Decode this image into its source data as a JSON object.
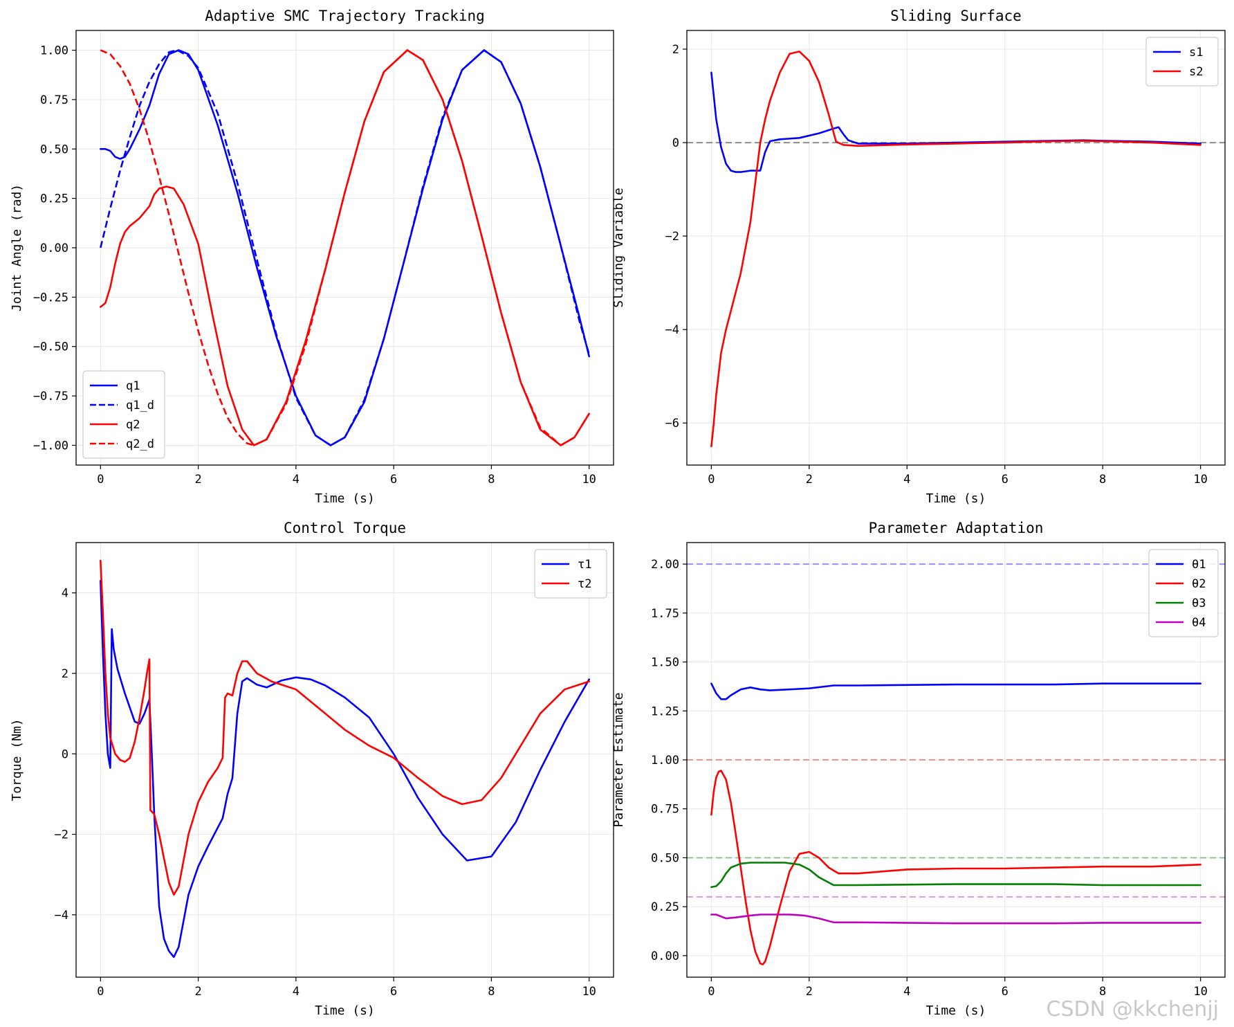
{
  "watermark": "CSDN @kkchenjj",
  "chart_data": [
    {
      "type": "line",
      "title": "Adaptive SMC Trajectory Tracking",
      "xlabel": "Time (s)",
      "ylabel": "Joint Angle (rad)",
      "xlim": [
        -0.5,
        10.5
      ],
      "ylim": [
        -1.1,
        1.1
      ],
      "xticks": [
        0,
        2,
        4,
        6,
        8,
        10
      ],
      "xtick_labels": [
        "0",
        "2",
        "4",
        "6",
        "8",
        "10"
      ],
      "yticks": [
        1.0,
        0.75,
        0.5,
        0.25,
        0.0,
        -0.25,
        -0.5,
        -0.75,
        -1.0
      ],
      "ytick_labels": [
        "1.00",
        "0.75",
        "0.50",
        "0.25",
        "0.00",
        "−0.25",
        "−0.50",
        "−0.75",
        "−1.00"
      ],
      "grid": true,
      "legend_position": "lower-left",
      "series": [
        {
          "name": "q1",
          "color": "#0000ff",
          "style": "solid",
          "x": [
            0,
            0.1,
            0.2,
            0.3,
            0.4,
            0.5,
            0.6,
            0.8,
            1.0,
            1.2,
            1.4,
            1.6,
            1.8,
            2.0,
            2.4,
            2.8,
            3.2,
            3.6,
            4.0,
            4.4,
            4.71,
            5.0,
            5.4,
            5.8,
            6.2,
            6.6,
            7.0,
            7.4,
            7.85,
            8.2,
            8.6,
            9.0,
            9.4,
            9.8,
            10.0
          ],
          "y": [
            0.5,
            0.5,
            0.49,
            0.46,
            0.45,
            0.46,
            0.5,
            0.6,
            0.72,
            0.88,
            0.98,
            1.0,
            0.98,
            0.9,
            0.62,
            0.28,
            -0.1,
            -0.45,
            -0.75,
            -0.95,
            -1.0,
            -0.96,
            -0.78,
            -0.46,
            -0.08,
            0.3,
            0.65,
            0.9,
            1.0,
            0.94,
            0.73,
            0.41,
            0.03,
            -0.35,
            -0.55
          ]
        },
        {
          "name": "q1_d",
          "color": "#0000ff",
          "style": "dashed",
          "x": [
            0,
            0.2,
            0.4,
            0.6,
            0.8,
            1.0,
            1.2,
            1.4,
            1.57,
            1.8,
            2.0,
            2.4,
            2.8,
            3.2,
            3.6,
            4.0,
            4.4,
            4.71,
            5.0,
            5.4,
            5.8,
            6.2,
            6.6,
            7.0,
            7.4,
            7.85,
            8.2,
            8.6,
            9.0,
            9.4,
            9.8,
            10.0
          ],
          "y": [
            0.0,
            0.2,
            0.39,
            0.56,
            0.72,
            0.84,
            0.93,
            0.99,
            1.0,
            0.97,
            0.91,
            0.68,
            0.33,
            -0.06,
            -0.44,
            -0.76,
            -0.95,
            -1.0,
            -0.96,
            -0.77,
            -0.46,
            -0.08,
            0.31,
            0.66,
            0.9,
            1.0,
            0.94,
            0.73,
            0.41,
            0.03,
            -0.37,
            -0.54
          ]
        },
        {
          "name": "q2",
          "color": "#ff0000",
          "style": "solid",
          "x": [
            0,
            0.1,
            0.2,
            0.3,
            0.4,
            0.5,
            0.6,
            0.8,
            1.0,
            1.1,
            1.2,
            1.35,
            1.5,
            1.7,
            2.0,
            2.3,
            2.6,
            2.9,
            3.14,
            3.4,
            3.8,
            4.2,
            4.6,
            5.0,
            5.4,
            5.8,
            6.28,
            6.6,
            7.0,
            7.4,
            7.8,
            8.2,
            8.6,
            9.0,
            9.42,
            9.7,
            10.0
          ],
          "y": [
            -0.3,
            -0.28,
            -0.2,
            -0.08,
            0.02,
            0.08,
            0.11,
            0.15,
            0.21,
            0.27,
            0.3,
            0.31,
            0.3,
            0.22,
            0.02,
            -0.35,
            -0.7,
            -0.92,
            -1.0,
            -0.97,
            -0.78,
            -0.47,
            -0.11,
            0.28,
            0.64,
            0.89,
            1.0,
            0.95,
            0.75,
            0.44,
            0.06,
            -0.33,
            -0.68,
            -0.92,
            -1.0,
            -0.96,
            -0.84
          ]
        },
        {
          "name": "q2_d",
          "color": "#ff0000",
          "style": "dashed",
          "x": [
            0,
            0.2,
            0.4,
            0.6,
            0.8,
            1.0,
            1.2,
            1.4,
            1.6,
            1.8,
            2.0,
            2.2,
            2.4,
            2.6,
            2.8,
            3.0,
            3.14,
            3.4,
            3.8,
            4.2,
            4.6,
            5.0,
            5.4,
            5.8,
            6.28,
            6.6,
            7.0,
            7.4,
            7.8,
            8.2,
            8.6,
            9.0,
            9.42,
            9.7,
            10.0
          ],
          "y": [
            1.0,
            0.98,
            0.92,
            0.83,
            0.7,
            0.54,
            0.36,
            0.17,
            -0.03,
            -0.23,
            -0.42,
            -0.59,
            -0.74,
            -0.86,
            -0.94,
            -0.99,
            -1.0,
            -0.97,
            -0.79,
            -0.49,
            -0.11,
            0.28,
            0.64,
            0.89,
            1.0,
            0.95,
            0.75,
            0.44,
            0.06,
            -0.33,
            -0.68,
            -0.91,
            -1.0,
            -0.96,
            -0.84
          ]
        }
      ]
    },
    {
      "type": "line",
      "title": "Sliding Surface",
      "xlabel": "Time (s)",
      "ylabel": "Sliding Variable",
      "xlim": [
        -0.5,
        10.5
      ],
      "ylim": [
        -6.9,
        2.4
      ],
      "xticks": [
        0,
        2,
        4,
        6,
        8,
        10
      ],
      "xtick_labels": [
        "0",
        "2",
        "4",
        "6",
        "8",
        "10"
      ],
      "yticks": [
        2,
        0,
        -2,
        -4,
        -6
      ],
      "ytick_labels": [
        "2",
        "0",
        "−2",
        "−4",
        "−6"
      ],
      "grid": true,
      "legend_position": "upper-right",
      "hlines": [
        {
          "y": 0,
          "color": "#808080",
          "style": "dashed"
        }
      ],
      "series": [
        {
          "name": "s1",
          "color": "#0000ff",
          "style": "solid",
          "x": [
            0,
            0.1,
            0.2,
            0.3,
            0.4,
            0.5,
            0.6,
            0.8,
            1.0,
            1.1,
            1.2,
            1.4,
            1.8,
            2.2,
            2.5,
            2.6,
            2.7,
            2.8,
            3.0,
            4.0,
            5.0,
            6.0,
            7.0,
            7.6,
            8.0,
            9.0,
            10.0
          ],
          "y": [
            1.5,
            0.5,
            -0.1,
            -0.45,
            -0.6,
            -0.63,
            -0.63,
            -0.6,
            -0.6,
            -0.2,
            0.03,
            0.07,
            0.1,
            0.2,
            0.3,
            0.33,
            0.18,
            0.05,
            -0.02,
            -0.02,
            0.0,
            0.02,
            0.04,
            0.05,
            0.04,
            0.02,
            -0.02
          ]
        },
        {
          "name": "s2",
          "color": "#ff0000",
          "style": "solid",
          "x": [
            0,
            0.05,
            0.1,
            0.2,
            0.3,
            0.4,
            0.5,
            0.6,
            0.8,
            1.0,
            1.1,
            1.2,
            1.4,
            1.6,
            1.8,
            2.0,
            2.2,
            2.4,
            2.55,
            2.7,
            3.0,
            4.0,
            5.0,
            6.0,
            7.0,
            7.6,
            8.0,
            9.0,
            10.0
          ],
          "y": [
            -6.5,
            -6.0,
            -5.4,
            -4.5,
            -4.0,
            -3.6,
            -3.2,
            -2.8,
            -1.7,
            0.0,
            0.5,
            0.9,
            1.5,
            1.9,
            1.95,
            1.75,
            1.3,
            0.6,
            0.02,
            -0.05,
            -0.07,
            -0.04,
            -0.02,
            0.0,
            0.03,
            0.04,
            0.03,
            0.0,
            -0.05
          ]
        }
      ]
    },
    {
      "type": "line",
      "title": "Control Torque",
      "xlabel": "Time (s)",
      "ylabel": "Torque (Nm)",
      "xlim": [
        -0.5,
        10.5
      ],
      "ylim": [
        -5.55,
        5.25
      ],
      "xticks": [
        0,
        2,
        4,
        6,
        8,
        10
      ],
      "xtick_labels": [
        "0",
        "2",
        "4",
        "6",
        "8",
        "10"
      ],
      "yticks": [
        4,
        2,
        0,
        -2,
        -4
      ],
      "ytick_labels": [
        "4",
        "2",
        "0",
        "−2",
        "−4"
      ],
      "grid": true,
      "legend_position": "upper-right",
      "series": [
        {
          "name": "τ1",
          "color": "#0000ff",
          "style": "solid",
          "x": [
            0,
            0.05,
            0.1,
            0.15,
            0.2,
            0.23,
            0.27,
            0.35,
            0.5,
            0.7,
            0.8,
            0.9,
            1.0,
            1.05,
            1.1,
            1.2,
            1.3,
            1.4,
            1.5,
            1.6,
            1.8,
            2.0,
            2.2,
            2.5,
            2.6,
            2.7,
            2.8,
            2.9,
            3.0,
            3.2,
            3.4,
            3.7,
            4.0,
            4.3,
            4.6,
            5.0,
            5.5,
            6.0,
            6.5,
            7.0,
            7.5,
            8.0,
            8.5,
            9.0,
            9.5,
            10.0
          ],
          "y": [
            4.3,
            2.5,
            1.0,
            0.0,
            -0.35,
            3.1,
            2.6,
            2.1,
            1.5,
            0.8,
            0.75,
            1.0,
            1.35,
            0.0,
            -1.5,
            -3.8,
            -4.6,
            -4.9,
            -5.05,
            -4.8,
            -3.5,
            -2.8,
            -2.3,
            -1.6,
            -1.0,
            -0.6,
            1.0,
            1.8,
            1.88,
            1.72,
            1.65,
            1.82,
            1.9,
            1.85,
            1.7,
            1.4,
            0.9,
            0.0,
            -1.1,
            -2.0,
            -2.65,
            -2.55,
            -1.7,
            -0.4,
            0.8,
            1.85
          ]
        },
        {
          "name": "τ2",
          "color": "#ff0000",
          "style": "solid",
          "x": [
            0,
            0.05,
            0.1,
            0.15,
            0.2,
            0.3,
            0.4,
            0.5,
            0.6,
            0.7,
            0.8,
            0.9,
            0.95,
            1.0,
            1.02,
            1.1,
            1.2,
            1.3,
            1.4,
            1.5,
            1.6,
            1.8,
            2.0,
            2.2,
            2.4,
            2.5,
            2.55,
            2.6,
            2.7,
            2.8,
            2.9,
            3.0,
            3.2,
            3.5,
            4.0,
            4.5,
            5.0,
            5.5,
            6.0,
            6.5,
            7.0,
            7.4,
            7.8,
            8.2,
            8.6,
            9.0,
            9.5,
            10.0
          ],
          "y": [
            4.8,
            3.5,
            2.0,
            1.0,
            0.4,
            -0.0,
            -0.15,
            -0.2,
            -0.1,
            0.3,
            0.9,
            1.6,
            2.0,
            2.35,
            -1.4,
            -1.5,
            -2.0,
            -2.6,
            -3.2,
            -3.5,
            -3.3,
            -2.0,
            -1.2,
            -0.7,
            -0.35,
            -0.1,
            1.4,
            1.5,
            1.45,
            2.0,
            2.3,
            2.3,
            2.0,
            1.8,
            1.6,
            1.1,
            0.6,
            0.2,
            -0.1,
            -0.6,
            -1.05,
            -1.25,
            -1.15,
            -0.6,
            0.2,
            1.0,
            1.6,
            1.8
          ]
        }
      ]
    },
    {
      "type": "line",
      "title": "Parameter Adaptation",
      "xlabel": "Time (s)",
      "ylabel": "Parameter Estimate",
      "xlim": [
        -0.5,
        10.5
      ],
      "ylim": [
        -0.11,
        2.11
      ],
      "xticks": [
        0,
        2,
        4,
        6,
        8,
        10
      ],
      "xtick_labels": [
        "0",
        "2",
        "4",
        "6",
        "8",
        "10"
      ],
      "yticks": [
        2.0,
        1.75,
        1.5,
        1.25,
        1.0,
        0.75,
        0.5,
        0.25,
        0.0
      ],
      "ytick_labels": [
        "2.00",
        "1.75",
        "1.50",
        "1.25",
        "1.00",
        "0.75",
        "0.50",
        "0.25",
        "0.00"
      ],
      "grid": true,
      "legend_position": "upper-right",
      "hlines": [
        {
          "y": 2.0,
          "color": "#0000ff"
        },
        {
          "y": 1.0,
          "color": "#ff0000"
        },
        {
          "y": 0.5,
          "color": "#008000"
        },
        {
          "y": 0.3,
          "color": "#bf00bf"
        }
      ],
      "series": [
        {
          "name": "θ1",
          "color": "#0000ff",
          "style": "solid",
          "x": [
            0,
            0.1,
            0.2,
            0.3,
            0.4,
            0.6,
            0.8,
            1.0,
            1.2,
            1.6,
            2.0,
            2.5,
            3.0,
            5.0,
            7.0,
            8.0,
            9.0,
            10.0
          ],
          "y": [
            1.39,
            1.34,
            1.31,
            1.31,
            1.33,
            1.36,
            1.37,
            1.36,
            1.355,
            1.36,
            1.365,
            1.38,
            1.38,
            1.385,
            1.385,
            1.39,
            1.39,
            1.39
          ]
        },
        {
          "name": "θ2",
          "color": "#ff0000",
          "style": "solid",
          "x": [
            0,
            0.05,
            0.1,
            0.15,
            0.2,
            0.3,
            0.4,
            0.5,
            0.6,
            0.7,
            0.8,
            0.9,
            1.0,
            1.05,
            1.1,
            1.2,
            1.4,
            1.6,
            1.8,
            2.0,
            2.2,
            2.4,
            2.6,
            3.0,
            4.0,
            5.0,
            6.0,
            7.0,
            8.0,
            9.0,
            10.0
          ],
          "y": [
            0.72,
            0.84,
            0.91,
            0.94,
            0.945,
            0.9,
            0.78,
            0.62,
            0.45,
            0.28,
            0.13,
            0.02,
            -0.04,
            -0.045,
            -0.03,
            0.05,
            0.25,
            0.43,
            0.52,
            0.53,
            0.5,
            0.45,
            0.42,
            0.42,
            0.44,
            0.445,
            0.445,
            0.45,
            0.455,
            0.455,
            0.465
          ]
        },
        {
          "name": "θ3",
          "color": "#008000",
          "style": "solid",
          "x": [
            0,
            0.1,
            0.2,
            0.3,
            0.4,
            0.6,
            0.8,
            1.0,
            1.2,
            1.5,
            1.8,
            2.0,
            2.2,
            2.5,
            3.0,
            5.0,
            7.0,
            8.0,
            9.0,
            10.0
          ],
          "y": [
            0.35,
            0.355,
            0.38,
            0.42,
            0.45,
            0.47,
            0.475,
            0.475,
            0.475,
            0.475,
            0.465,
            0.44,
            0.4,
            0.36,
            0.36,
            0.365,
            0.365,
            0.36,
            0.36,
            0.36
          ]
        },
        {
          "name": "θ4",
          "color": "#bf00bf",
          "style": "solid",
          "x": [
            0,
            0.1,
            0.2,
            0.3,
            0.5,
            0.8,
            1.0,
            1.3,
            1.6,
            1.9,
            2.2,
            2.5,
            3.0,
            5.0,
            7.0,
            8.0,
            10.0
          ],
          "y": [
            0.21,
            0.21,
            0.2,
            0.19,
            0.195,
            0.205,
            0.21,
            0.21,
            0.21,
            0.205,
            0.19,
            0.17,
            0.17,
            0.165,
            0.165,
            0.168,
            0.168
          ]
        }
      ]
    }
  ]
}
